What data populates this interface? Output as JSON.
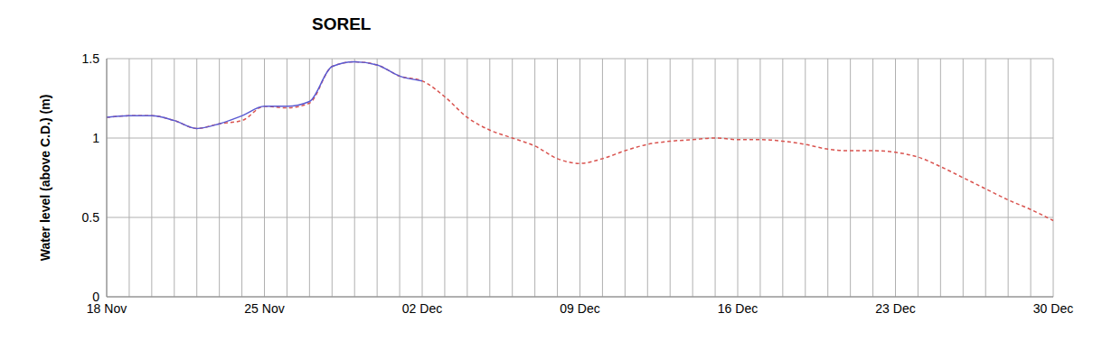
{
  "chart_data": {
    "type": "line",
    "title": "SOREL",
    "y_label": "Water level (above C.D.) (m)",
    "categories": [
      "18 Nov",
      null,
      null,
      null,
      null,
      null,
      null,
      "25 Nov",
      null,
      null,
      null,
      null,
      null,
      null,
      "02 Dec",
      null,
      null,
      null,
      null,
      null,
      null,
      "09 Dec",
      null,
      null,
      null,
      null,
      null,
      null,
      "16 Dec",
      null,
      null,
      null,
      null,
      null,
      null,
      "23 Dec",
      null,
      null,
      null,
      null,
      null,
      null,
      "30 Dec"
    ],
    "series": [
      {
        "color": "#5a5ad2",
        "line_style": "solid",
        "values": [
          1.13,
          1.14,
          1.14,
          1.11,
          1.06,
          1.09,
          1.14,
          1.2,
          1.2,
          1.23,
          1.45,
          1.48,
          1.46,
          1.39,
          1.36,
          null,
          null,
          null,
          null,
          null,
          null,
          null,
          null,
          null,
          null,
          null,
          null,
          null,
          null,
          null,
          null,
          null,
          null,
          null,
          null,
          null,
          null,
          null,
          null,
          null,
          null,
          null,
          null
        ]
      },
      {
        "color": "#d9534f",
        "line_style": "dashed",
        "values": [
          1.13,
          1.14,
          1.14,
          1.11,
          1.06,
          1.09,
          1.11,
          1.2,
          1.19,
          1.22,
          1.45,
          1.48,
          1.46,
          1.39,
          1.36,
          1.26,
          1.13,
          1.05,
          1.0,
          0.95,
          0.87,
          0.84,
          0.87,
          0.92,
          0.96,
          0.98,
          0.99,
          1.0,
          0.99,
          0.99,
          0.98,
          0.96,
          0.93,
          0.92,
          0.92,
          0.91,
          0.88,
          0.82,
          0.75,
          0.68,
          0.61,
          0.55,
          0.48
        ]
      }
    ],
    "ylim": [
      0,
      1.5
    ],
    "yticks": [
      0,
      0.5,
      1,
      1.5
    ],
    "grid": true
  }
}
